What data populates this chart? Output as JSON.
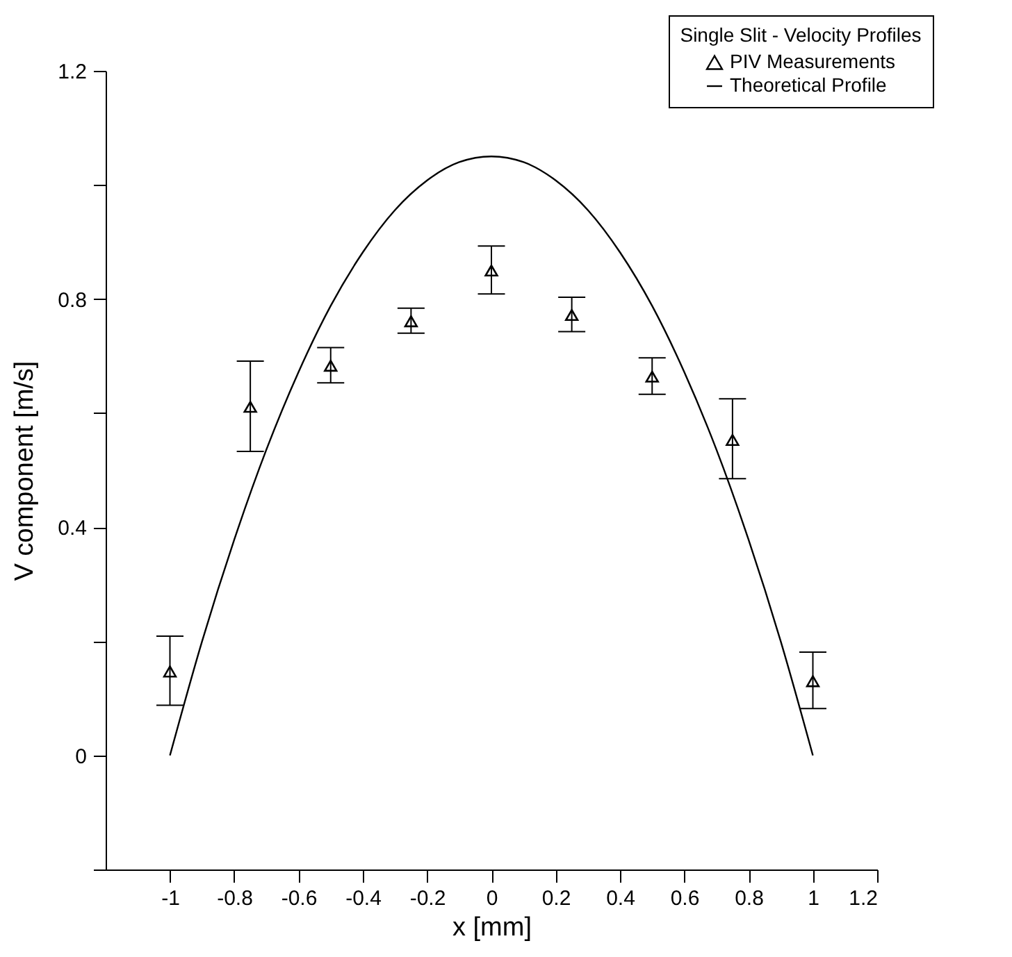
{
  "chart_data": {
    "type": "scatter",
    "xlabel": "x [mm]",
    "ylabel": "V component [m/s]",
    "legend_title": "Single Slit - Velocity Profiles",
    "legend": "top right",
    "grid": false,
    "xlim": [
      -1.2,
      1.2
    ],
    "xticks": [
      -1,
      -0.8,
      -0.6,
      -0.4,
      -0.2,
      0,
      0.2,
      0.4,
      0.6,
      0.8,
      1,
      1.2
    ],
    "ylim": [
      -0.2,
      1.2
    ],
    "yticks": [
      {
        "value": -0.2,
        "label": null
      },
      0,
      {
        "value": 0.2,
        "label": null
      },
      0.4,
      {
        "value": 0.6,
        "label": null
      },
      0.8,
      {
        "value": 1,
        "label": null
      },
      1.2
    ],
    "series": [
      {
        "name": "PIV Measurements",
        "marker": "triangle",
        "color": "#000000",
        "x": [
          -1,
          -0.75,
          -0.5,
          -0.25,
          0,
          0.25,
          0.5,
          0.75,
          1
        ],
        "values": [
          0.147,
          0.611,
          0.683,
          0.761,
          0.85,
          0.772,
          0.664,
          0.553,
          0.13
        ],
        "errors": [
          [
            0.088,
            0.209
          ],
          [
            0.533,
            0.691
          ],
          [
            0.653,
            0.715
          ],
          [
            0.74,
            0.784
          ],
          [
            0.809,
            0.893
          ],
          [
            0.743,
            0.803
          ],
          [
            0.633,
            0.697
          ],
          [
            0.485,
            0.625
          ],
          [
            0.082,
            0.181
          ]
        ]
      },
      {
        "name": "Theoretical Profile",
        "type": "line",
        "color": "#000000",
        "line_style": "solid",
        "x": [
          -1,
          -0.9,
          -0.8,
          -0.7,
          -0.6,
          -0.5,
          -0.4,
          -0.3,
          -0.2,
          -0.1,
          0,
          0.1,
          0.2,
          0.3,
          0.4,
          0.5,
          0.6,
          0.7,
          0.8,
          0.9,
          1
        ],
        "values": [
          0,
          0.2,
          0.378,
          0.536,
          0.672,
          0.788,
          0.882,
          0.956,
          1.008,
          1.04,
          1.05,
          1.04,
          1.008,
          0.956,
          0.882,
          0.788,
          0.672,
          0.536,
          0.378,
          0.2,
          0
        ]
      }
    ]
  }
}
